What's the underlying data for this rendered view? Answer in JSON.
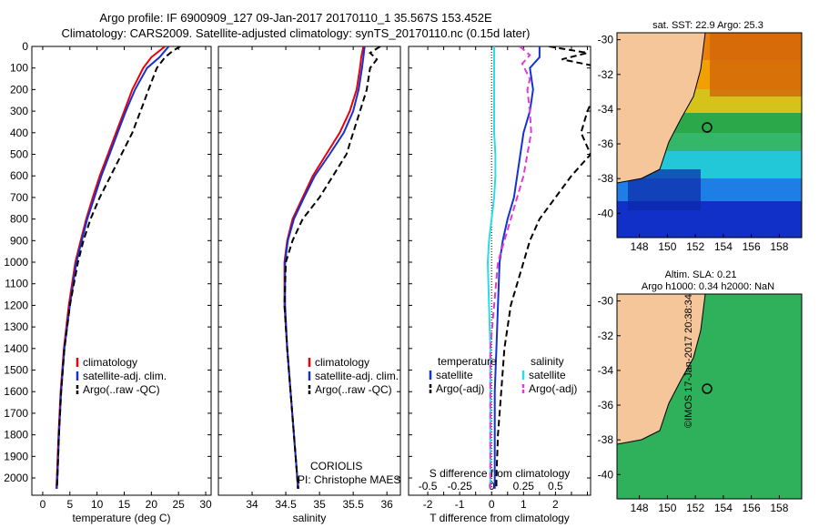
{
  "header": {
    "line1": "Argo profile: IF 6900909_127 09-Jan-2017 20170110_1 35.567S 153.452E",
    "line2": "Climatology: CARS2009. Satellite-adjusted climatology: synTS_20170110.nc (0.15d later)"
  },
  "colors": {
    "climatology": "#e8000b",
    "satellite": "#1432d2",
    "argo": "#000000",
    "sal_sat": "#2bdbe6",
    "sal_argo": "#e23ad7",
    "land": "#f4c69a"
  },
  "chart_data": [
    {
      "type": "line",
      "id": "temperature",
      "xlabel": "temperature (deg C)",
      "xlim": [
        -2,
        31
      ],
      "ylim": [
        2080,
        0
      ],
      "xticks": [
        0,
        5,
        10,
        15,
        20,
        25,
        30
      ],
      "yticks": [
        0,
        100,
        200,
        300,
        400,
        500,
        600,
        700,
        800,
        900,
        1000,
        1100,
        1200,
        1300,
        1400,
        1500,
        1600,
        1700,
        1800,
        1900,
        2000
      ],
      "series": [
        {
          "name": "climatology",
          "style": "solid",
          "color": "#e8000b",
          "depth": [
            0,
            50,
            100,
            200,
            300,
            400,
            500,
            600,
            700,
            800,
            900,
            1000,
            1200,
            1400,
            1600,
            1800,
            2000,
            2050
          ],
          "values": [
            22.5,
            20,
            18.5,
            16.5,
            15,
            13.5,
            12,
            10.5,
            9.2,
            8,
            7,
            6,
            4.8,
            3.9,
            3.3,
            2.9,
            2.6,
            2.5
          ]
        },
        {
          "name": "satellite-adj. clim.",
          "style": "solid",
          "color": "#1432d2",
          "depth": [
            0,
            50,
            100,
            200,
            300,
            400,
            500,
            600,
            700,
            800,
            900,
            1000,
            1200,
            1400,
            1600,
            1800,
            2000,
            2050
          ],
          "values": [
            23.2,
            21.5,
            19.2,
            17,
            15.3,
            13.8,
            12.3,
            10.8,
            9.5,
            8.2,
            7.2,
            6.2,
            5,
            4,
            3.4,
            3,
            2.7,
            2.6
          ]
        },
        {
          "name": "Argo(..raw -QC)",
          "style": "dashed",
          "color": "#000000",
          "depth": [
            0,
            20,
            50,
            100,
            200,
            300,
            400,
            500,
            600,
            700,
            800,
            900,
            1000,
            1200,
            1400,
            1600,
            1800,
            2000,
            2050
          ],
          "values": [
            25.3,
            24,
            22.5,
            21,
            19.5,
            18,
            16.5,
            14.5,
            12.5,
            10.5,
            8.8,
            7.5,
            6.5,
            5,
            4,
            3.4,
            3,
            2.7,
            2.6
          ]
        }
      ],
      "legend": [
        "climatology",
        "satellite-adj. clim.",
        "Argo(..raw -QC)"
      ]
    },
    {
      "type": "line",
      "id": "salinity",
      "xlabel": "salinity",
      "xlim": [
        33.5,
        36.2
      ],
      "xticks": [
        34,
        34.5,
        35,
        35.5,
        36
      ],
      "series": [
        {
          "name": "climatology",
          "style": "solid",
          "color": "#e8000b",
          "depth": [
            0,
            50,
            100,
            200,
            300,
            400,
            500,
            600,
            700,
            800,
            900,
            1000,
            1200,
            1400,
            1600,
            1800,
            2000,
            2050
          ],
          "values": [
            35.65,
            35.62,
            35.6,
            35.55,
            35.45,
            35.3,
            35.1,
            34.9,
            34.75,
            34.6,
            34.52,
            34.48,
            34.48,
            34.52,
            34.57,
            34.62,
            34.67,
            34.68
          ]
        },
        {
          "name": "satellite-adj. clim.",
          "style": "solid",
          "color": "#1432d2",
          "depth": [
            0,
            50,
            100,
            200,
            300,
            400,
            500,
            600,
            700,
            800,
            900,
            1000,
            1200,
            1400,
            1600,
            1800,
            2000,
            2050
          ],
          "values": [
            35.67,
            35.65,
            35.63,
            35.58,
            35.5,
            35.36,
            35.15,
            34.93,
            34.77,
            34.62,
            34.53,
            34.49,
            34.49,
            34.52,
            34.57,
            34.62,
            34.67,
            34.69
          ]
        },
        {
          "name": "Argo(..raw -QC)",
          "style": "dashed",
          "color": "#000000",
          "depth": [
            0,
            30,
            60,
            100,
            200,
            300,
            400,
            500,
            600,
            700,
            800,
            900,
            1000,
            1200,
            1400,
            1600,
            1800,
            2000,
            2050
          ],
          "values": [
            35.9,
            35.75,
            35.85,
            35.75,
            35.7,
            35.6,
            35.5,
            35.4,
            35.2,
            35,
            34.75,
            34.6,
            34.5,
            34.48,
            34.52,
            34.57,
            34.62,
            34.67,
            34.68
          ]
        }
      ],
      "legend": [
        "climatology",
        "satellite-adj. clim.",
        "Argo(..raw -QC)"
      ],
      "annotation": [
        "CORIOLIS",
        "PI: Christophe MAES"
      ]
    },
    {
      "type": "line",
      "id": "difference",
      "xlabel": "T difference from climatology",
      "xlabel_top": "S difference from climatology",
      "xlim": [
        -2.6,
        3.1
      ],
      "xticks": [
        -2,
        -1.5,
        -1,
        -0.5,
        0,
        0.5,
        1,
        1.5,
        2,
        2.5,
        3
      ],
      "xticklabels": [
        "-2",
        "",
        "-1",
        "",
        "0",
        "",
        "1",
        "",
        "2",
        "",
        ""
      ],
      "sxticks": [
        -0.5,
        -0.25,
        0,
        0.25,
        0.5
      ],
      "sxticklabels": [
        "-0.5",
        "-0.25",
        "0",
        "0.25",
        "0.5"
      ],
      "series": [
        {
          "name": "temperature satellite",
          "style": "solid",
          "color": "#1432d2",
          "depth": [
            0,
            50,
            100,
            200,
            300,
            400,
            500,
            600,
            700,
            800,
            900,
            1000,
            1200,
            1400,
            1600,
            1800,
            2000,
            2050
          ],
          "values": [
            1.5,
            1.5,
            1.2,
            1.3,
            1.2,
            1.0,
            0.9,
            0.8,
            0.7,
            0.5,
            0.35,
            0.25,
            0.2,
            0.15,
            0.1,
            0.1,
            0.1,
            0.1
          ]
        },
        {
          "name": "temperature Argo(-adj)",
          "style": "dashed",
          "color": "#000000",
          "depth": [
            0,
            30,
            60,
            90,
            150,
            200,
            300,
            400,
            500,
            600,
            700,
            800,
            900,
            1000,
            1100,
            1200,
            1400,
            1600,
            1800,
            2000,
            2050
          ],
          "values": [
            1.8,
            3.0,
            2.2,
            3.2,
            3.2,
            3.3,
            3.0,
            2.8,
            3.1,
            2.5,
            2.0,
            1.5,
            1.2,
            1.0,
            0.8,
            0.6,
            0.4,
            0.3,
            0.2,
            0.15,
            0.15
          ]
        },
        {
          "name": "salinity satellite",
          "style": "solid",
          "color": "#2bdbe6",
          "depth": [
            0,
            100,
            200,
            300,
            400,
            500,
            600,
            700,
            800,
            900,
            1000,
            1200,
            1400,
            1600,
            1800,
            2000,
            2050
          ],
          "values": [
            0.02,
            0.02,
            0.02,
            0.02,
            0.02,
            0.03,
            0.03,
            0.02,
            0.0,
            -0.02,
            -0.03,
            -0.02,
            -0.01,
            -0.01,
            -0.01,
            -0.01,
            -0.01
          ]
        },
        {
          "name": "salinity Argo(-adj)",
          "style": "dashed",
          "color": "#e23ad7",
          "depth": [
            0,
            40,
            80,
            150,
            200,
            300,
            400,
            500,
            600,
            700,
            800,
            900,
            1000,
            1200,
            1400,
            1600,
            1800,
            2000,
            2050
          ],
          "values": [
            0.22,
            0.3,
            0.24,
            0.3,
            0.28,
            0.3,
            0.31,
            0.28,
            0.25,
            0.2,
            0.15,
            0.1,
            0.05,
            0.02,
            -0.01,
            -0.01,
            -0.01,
            -0.01,
            -0.01
          ]
        }
      ],
      "legend_temperature": {
        "title": "temperature",
        "items": [
          "satellite",
          "Argo(-adj)"
        ]
      },
      "legend_salinity": {
        "title": "salinity",
        "items": [
          "satellite",
          "Argo(-adj)"
        ]
      }
    }
  ],
  "maps": {
    "sst": {
      "title": "sat. SST: 22.9  Argo: 25.3",
      "xticks": [
        "148",
        "150",
        "152",
        "154",
        "156",
        "158"
      ],
      "yticks": [
        "-30",
        "-32",
        "-34",
        "-36",
        "-38",
        "-40"
      ]
    },
    "sla": {
      "title_line1": "Altim. SLA: 0.21",
      "title_line2": "Argo h1000: 0.34 h2000: NaN",
      "xticks": [
        "148",
        "150",
        "152",
        "154",
        "156",
        "158"
      ],
      "yticks": [
        "-30",
        "-32",
        "-34",
        "-36",
        "-38",
        "-40"
      ]
    }
  },
  "footer": {
    "stamp": "©IMOS 17-Jan-2017 20:38:34"
  }
}
